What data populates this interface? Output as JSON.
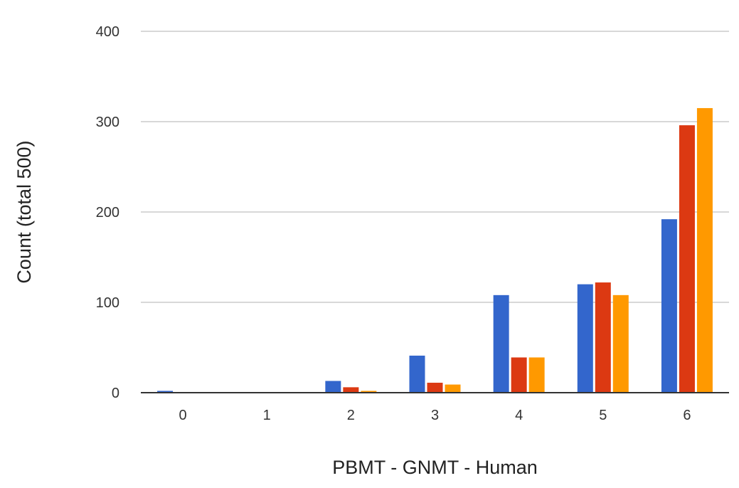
{
  "chart_data": {
    "type": "bar",
    "title": "",
    "xlabel": "PBMT - GNMT - Human",
    "ylabel": "Count (total 500)",
    "categories": [
      "0",
      "1",
      "2",
      "3",
      "4",
      "5",
      "6"
    ],
    "series": [
      {
        "color": "#3366cc",
        "values": [
          2,
          0,
          13,
          41,
          108,
          120,
          192
        ]
      },
      {
        "color": "#dc3912",
        "values": [
          0,
          0,
          6,
          11,
          39,
          122,
          296
        ]
      },
      {
        "color": "#ff9900",
        "values": [
          0,
          0,
          2,
          9,
          39,
          108,
          315
        ]
      }
    ],
    "ylim": [
      0,
      400
    ],
    "yticks": [
      0,
      100,
      200,
      300,
      400
    ],
    "grid": true,
    "legend": "none"
  }
}
